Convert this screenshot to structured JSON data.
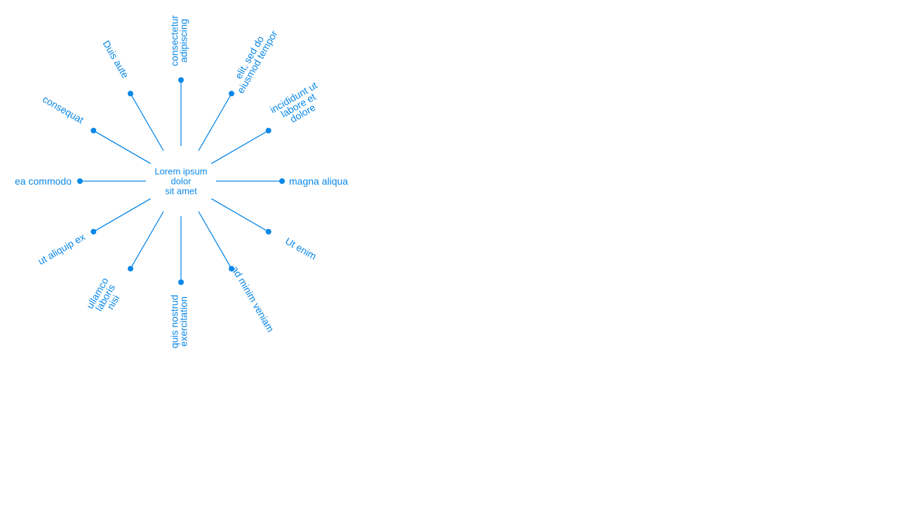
{
  "diagram": {
    "accent_color": "#0a88e8",
    "center": {
      "label_lines": [
        "Lorem ipsum",
        "dolor",
        "sit amet"
      ]
    },
    "spokes": [
      {
        "id": "n",
        "label_lines": [
          "consectetur",
          "adipiscing"
        ]
      },
      {
        "id": "nne",
        "label_lines": [
          "elit, sed do",
          "eiusmod tempor"
        ]
      },
      {
        "id": "ene",
        "label_lines": [
          "incididunt ut",
          "labore et",
          "dolore"
        ]
      },
      {
        "id": "e",
        "label_lines": [
          "magna aliqua"
        ]
      },
      {
        "id": "ese",
        "label_lines": [
          "Ut enim"
        ]
      },
      {
        "id": "sse",
        "label_lines": [
          "ad minim veniam"
        ]
      },
      {
        "id": "s",
        "label_lines": [
          "quis nostrud",
          "exercitation"
        ]
      },
      {
        "id": "ssw",
        "label_lines": [
          "ullamco",
          "laboris",
          "nisi"
        ]
      },
      {
        "id": "wsw",
        "label_lines": [
          "ut aliquip ex"
        ]
      },
      {
        "id": "w",
        "label_lines": [
          "ea commodo"
        ]
      },
      {
        "id": "wnw",
        "label_lines": [
          "consequat"
        ]
      },
      {
        "id": "nnw",
        "label_lines": [
          "Duis aute"
        ]
      }
    ]
  }
}
